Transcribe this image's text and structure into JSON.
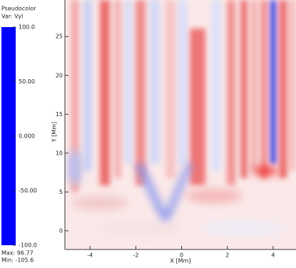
{
  "chart_data": {
    "type": "heatmap",
    "legend_title": "Pseudocolor",
    "legend_variable": "Var: Vyl",
    "max_label": "Max: 96.77",
    "min_label": "Min: -105.6",
    "xlabel": "X [Mm]",
    "ylabel": "Y [Mm]",
    "xlim": [
      -5.1,
      5.0
    ],
    "xticks": [
      -4,
      -2,
      0,
      2,
      4
    ],
    "ylim": [
      -2.4,
      29.7
    ],
    "yticks": [
      0,
      5,
      10,
      15,
      20,
      25
    ],
    "colorbar_lim": [
      -100,
      100
    ],
    "colorbar_ticks": [
      {
        "value": 100,
        "label": "100.0"
      },
      {
        "value": 50,
        "label": "50.00"
      },
      {
        "value": 0,
        "label": "0.000"
      },
      {
        "value": -50,
        "label": "-50.00"
      },
      {
        "value": -100,
        "label": "-100.0"
      }
    ],
    "colormap": [
      "#0000ff",
      "#ffffff",
      "#ff0000"
    ]
  }
}
